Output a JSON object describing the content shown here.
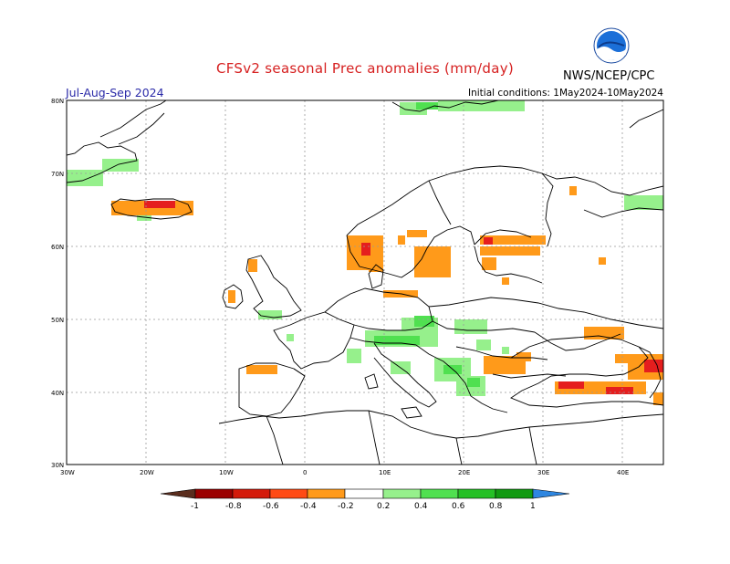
{
  "header": {
    "title": "CFSv2 seasonal Prec anomalies (mm/day)",
    "period": "Jul-Aug-Sep 2024",
    "initial_conditions": "Initial conditions: 1May2024-10May2024",
    "agency": "NWS/NCEP/CPC",
    "logo_text": "NOAA"
  },
  "axes": {
    "lat_labels": [
      "80N",
      "70N",
      "60N",
      "50N",
      "40N",
      "30N"
    ],
    "lon_labels": [
      "30W",
      "20W",
      "10W",
      "0",
      "10E",
      "20E",
      "30E",
      "40E"
    ]
  },
  "colorbar": {
    "labels": [
      "-1",
      "-0.8",
      "-0.6",
      "-0.4",
      "-0.2",
      "0.2",
      "0.4",
      "0.6",
      "0.8",
      "1"
    ],
    "colors": [
      "#5a2d1e",
      "#9b0000",
      "#d41a0a",
      "#ff4a14",
      "#ff9a1a",
      "#ffffff",
      "#96f08c",
      "#50e050",
      "#25c025",
      "#109a10",
      "#2e86e0"
    ]
  },
  "map_extent": {
    "lon": [
      -30,
      45
    ],
    "lat": [
      30,
      80
    ]
  },
  "anomaly_colors": {
    "dry_strong": "#e51e1e",
    "dry_mod": "#ff9a1a",
    "wet_light": "#96f08c",
    "wet_mod": "#50e050"
  }
}
